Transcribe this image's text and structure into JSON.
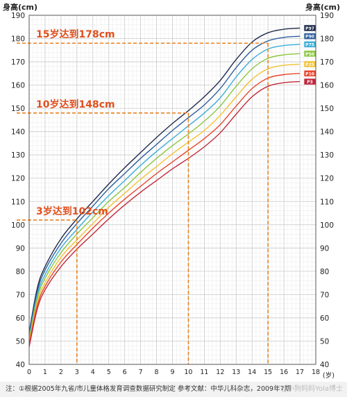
{
  "chart_data": {
    "type": "line",
    "y_axis_title_left": "身高(cm)",
    "y_axis_title_right": "身高(cm)",
    "x_unit_label": "(岁)",
    "xlim": [
      0,
      18
    ],
    "ylim": [
      40,
      190
    ],
    "x_ticks": [
      "0",
      "1",
      "2",
      "3",
      "4",
      "5",
      "6",
      "7",
      "8",
      "9",
      "10",
      "11",
      "12",
      "13",
      "14",
      "15",
      "16",
      "17",
      "18"
    ],
    "y_ticks": [
      "40",
      "50",
      "60",
      "70",
      "80",
      "90",
      "100",
      "110",
      "120",
      "130",
      "140",
      "150",
      "160",
      "170",
      "180",
      "190"
    ],
    "x": [
      0,
      0.5,
      1,
      2,
      3,
      4,
      5,
      6,
      7,
      8,
      9,
      10,
      11,
      12,
      13,
      14,
      15,
      16,
      17
    ],
    "series": [
      {
        "name": "P97",
        "color": "#1e2a4a",
        "values": [
          53.5,
          72.5,
          82.0,
          94.0,
          102.5,
          110.0,
          117.5,
          124.5,
          131.0,
          137.5,
          143.5,
          149.0,
          155.0,
          162.0,
          171.0,
          178.5,
          182.5,
          184.0,
          184.5
        ]
      },
      {
        "name": "P90",
        "color": "#2e5e9e",
        "values": [
          52.5,
          71.0,
          80.5,
          92.0,
          100.5,
          108.0,
          115.5,
          122.0,
          128.5,
          134.5,
          140.5,
          146.0,
          151.5,
          158.5,
          167.5,
          175.0,
          179.0,
          180.5,
          181.0
        ]
      },
      {
        "name": "P75",
        "color": "#3aaed8",
        "values": [
          51.5,
          69.5,
          78.5,
          90.0,
          98.0,
          105.5,
          112.5,
          119.0,
          125.5,
          131.5,
          137.0,
          142.5,
          148.0,
          154.5,
          163.5,
          171.0,
          175.5,
          177.0,
          177.5
        ]
      },
      {
        "name": "P50",
        "color": "#8cc63f",
        "values": [
          50.5,
          68.0,
          77.0,
          88.0,
          96.0,
          103.0,
          110.0,
          116.0,
          122.5,
          128.5,
          134.0,
          139.0,
          144.5,
          151.0,
          159.5,
          167.0,
          171.5,
          173.0,
          173.5
        ]
      },
      {
        "name": "P25",
        "color": "#f2c12e",
        "values": [
          49.5,
          66.5,
          75.0,
          86.0,
          93.5,
          100.5,
          107.5,
          113.5,
          119.5,
          125.0,
          130.5,
          135.5,
          140.5,
          147.0,
          155.0,
          162.5,
          167.0,
          168.5,
          169.0
        ]
      },
      {
        "name": "P10",
        "color": "#e8452c",
        "values": [
          48.5,
          65.0,
          73.5,
          84.0,
          91.5,
          98.5,
          105.0,
          111.0,
          116.5,
          122.0,
          127.0,
          132.0,
          137.0,
          143.0,
          151.0,
          158.5,
          163.0,
          164.5,
          165.0
        ]
      },
      {
        "name": "P3",
        "color": "#c0283c",
        "values": [
          47.5,
          63.5,
          72.0,
          82.0,
          89.5,
          96.0,
          102.5,
          108.5,
          114.0,
          119.0,
          124.0,
          128.5,
          133.5,
          139.5,
          147.5,
          155.0,
          159.5,
          161.0,
          161.5
        ]
      }
    ],
    "annotations": [
      {
        "text": "15岁达到178cm",
        "x": 15,
        "y": 178
      },
      {
        "text": "10岁达到148cm",
        "x": 10,
        "y": 148
      },
      {
        "text": "3岁达到102cm",
        "x": 3,
        "y": 102
      }
    ],
    "annotation_color": "#e8821e",
    "grid": true
  },
  "footnote": "注：①根据2005年九省/市儿童体格发育调查数据研究制定  参考文献：中华儿科杂志，2009年7期",
  "watermark": "@小狗妈妈Yola博士"
}
